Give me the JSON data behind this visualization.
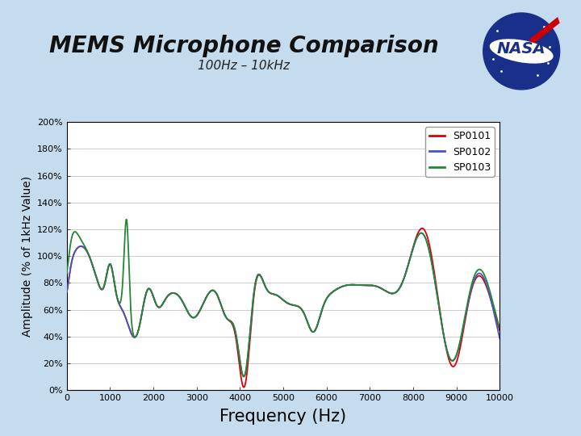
{
  "title": "MEMS Microphone Comparison",
  "subtitle": "100Hz – 10kHz",
  "xlabel": "Frequency (Hz)",
  "ylabel": "Amplitude (% of 1kHz Value)",
  "xlim": [
    0,
    10000
  ],
  "ylim": [
    0,
    200
  ],
  "ytick_vals": [
    0,
    20,
    40,
    60,
    80,
    100,
    120,
    140,
    160,
    180,
    200
  ],
  "ytick_labels": [
    "0%",
    "20%",
    "40%",
    "60%",
    "80%",
    "100%",
    "120%",
    "140%",
    "160%",
    "180%",
    "200%"
  ],
  "xticks": [
    0,
    1000,
    2000,
    3000,
    4000,
    5000,
    6000,
    7000,
    8000,
    9000,
    10000
  ],
  "series_labels": [
    "SP0101",
    "SP0102",
    "SP0103"
  ],
  "series_colors": [
    "#dd0000",
    "#4455cc",
    "#228833"
  ],
  "background_outer": "#c5dcee",
  "background_plot": "#ffffff",
  "title_fontsize": 20,
  "subtitle_fontsize": 11,
  "xlabel_fontsize": 15,
  "ylabel_fontsize": 10,
  "tick_fontsize": 8,
  "legend_fontsize": 9
}
